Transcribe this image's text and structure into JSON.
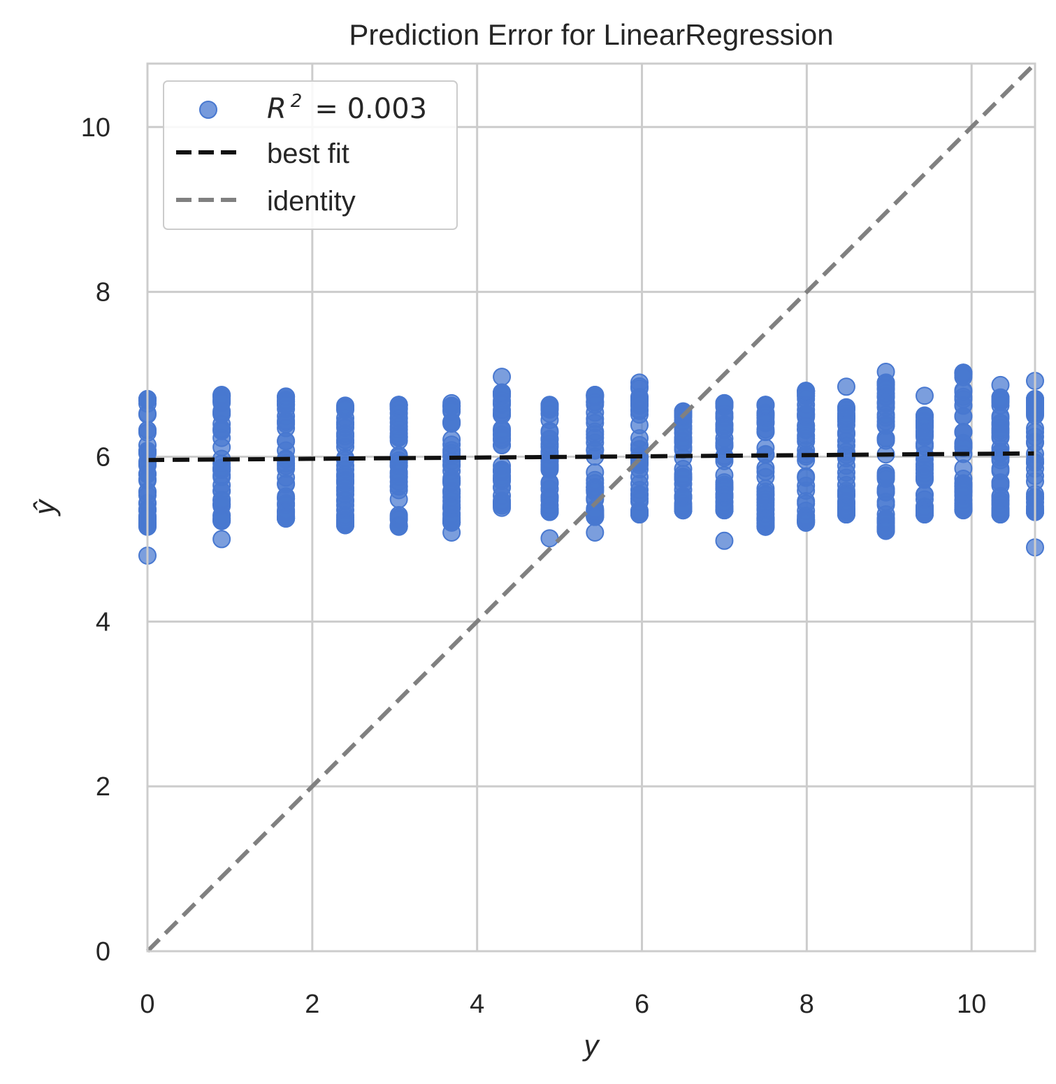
{
  "chart_data": {
    "type": "scatter",
    "title": "Prediction Error for LinearRegression",
    "xlabel": "y",
    "ylabel": "ŷ",
    "xlim": [
      0,
      10.77
    ],
    "ylim": [
      0,
      10.77
    ],
    "xticks": [
      0,
      2,
      4,
      6,
      8,
      10
    ],
    "yticks": [
      0,
      2,
      4,
      6,
      8,
      10
    ],
    "tick_labels_x": [
      "0",
      "2",
      "4",
      "6",
      "8",
      "10"
    ],
    "tick_labels_y": [
      "0",
      "2",
      "4",
      "6",
      "8",
      "10"
    ],
    "grid": true,
    "legend_placement": "upper-left",
    "legend": {
      "points_label_prefix": "R",
      "points_label_sup": "2",
      "points_label_value": "= 0.003",
      "best_fit_label": "best fit",
      "identity_label": "identity"
    },
    "series": [
      {
        "kind": "points",
        "color": "#4878d0",
        "clusters": [
          {
            "x": 0.0,
            "ymin": 5.15,
            "ymax": 6.7,
            "outliers": [
              4.8
            ]
          },
          {
            "x": 0.9,
            "ymin": 5.22,
            "ymax": 6.75,
            "outliers": [
              5.0
            ]
          },
          {
            "x": 1.68,
            "ymin": 5.25,
            "ymax": 6.73,
            "outliers": []
          },
          {
            "x": 2.4,
            "ymin": 5.17,
            "ymax": 6.62,
            "outliers": []
          },
          {
            "x": 3.05,
            "ymin": 5.15,
            "ymax": 6.63,
            "outliers": []
          },
          {
            "x": 3.69,
            "ymin": 5.2,
            "ymax": 6.65,
            "outliers": [
              5.08
            ]
          },
          {
            "x": 4.3,
            "ymin": 5.38,
            "ymax": 6.78,
            "outliers": [
              6.97
            ]
          },
          {
            "x": 4.88,
            "ymin": 5.33,
            "ymax": 6.63,
            "outliers": [
              5.01
            ]
          },
          {
            "x": 5.43,
            "ymin": 5.27,
            "ymax": 6.75,
            "outliers": [
              5.08
            ]
          },
          {
            "x": 5.97,
            "ymin": 5.3,
            "ymax": 6.9,
            "outliers": []
          },
          {
            "x": 6.5,
            "ymin": 5.35,
            "ymax": 6.55,
            "outliers": []
          },
          {
            "x": 7.0,
            "ymin": 5.35,
            "ymax": 6.65,
            "outliers": [
              4.98
            ]
          },
          {
            "x": 7.5,
            "ymin": 5.15,
            "ymax": 6.63,
            "outliers": []
          },
          {
            "x": 7.99,
            "ymin": 5.2,
            "ymax": 6.8,
            "outliers": []
          },
          {
            "x": 8.48,
            "ymin": 5.3,
            "ymax": 6.6,
            "outliers": [
              6.85
            ]
          },
          {
            "x": 8.96,
            "ymin": 5.1,
            "ymax": 6.9,
            "outliers": [
              7.03
            ]
          },
          {
            "x": 9.43,
            "ymin": 5.3,
            "ymax": 6.5,
            "outliers": [
              6.74
            ]
          },
          {
            "x": 9.9,
            "ymin": 5.35,
            "ymax": 7.02,
            "outliers": []
          },
          {
            "x": 10.35,
            "ymin": 5.3,
            "ymax": 6.72,
            "outliers": [
              6.87
            ]
          },
          {
            "x": 10.77,
            "ymin": 5.33,
            "ymax": 6.7,
            "outliers": [
              4.9,
              6.92
            ]
          }
        ]
      },
      {
        "kind": "line",
        "style": "dashed",
        "color": "#111111",
        "x": [
          0,
          10.77
        ],
        "y": [
          5.96,
          6.04
        ]
      },
      {
        "kind": "line",
        "style": "dashed",
        "color": "#808080",
        "x": [
          0,
          10.77
        ],
        "y": [
          0,
          10.77
        ]
      }
    ]
  }
}
